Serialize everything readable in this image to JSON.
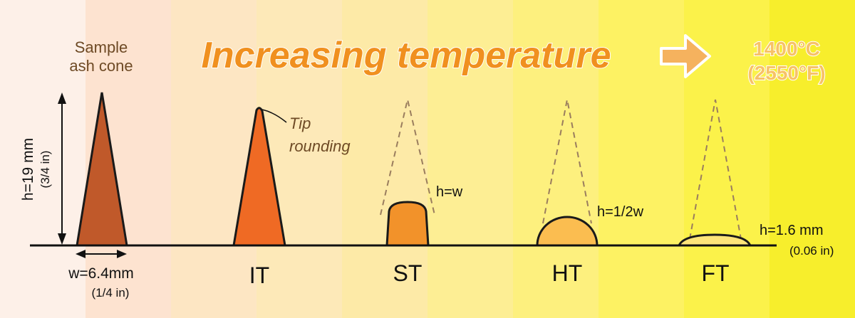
{
  "headline": "Increasing temperature",
  "max_temp": {
    "celsius": "1400°C",
    "fahrenheit": "(2550°F)"
  },
  "sample_label": {
    "line1": "Sample",
    "line2": "ash cone"
  },
  "dimensions": {
    "height": "h=19 mm",
    "height_in": "(3/4 in)",
    "width": "w=6.4mm",
    "width_in": "(1/4 in)"
  },
  "annotations": {
    "tip_line1": "Tip",
    "tip_line2": "rounding",
    "st_ratio": "h=w",
    "ht_ratio": "h=1/2w",
    "ft_height": "h=1.6 mm",
    "ft_height_in": "(0.06 in)"
  },
  "stages": [
    {
      "code": "IT",
      "color": "#ef6a24"
    },
    {
      "code": "ST",
      "color": "#f2922a"
    },
    {
      "code": "HT",
      "color": "#fbbd50"
    },
    {
      "code": "FT",
      "color": "#fde47a"
    }
  ],
  "colors": {
    "sample_cone": "#c0592a",
    "headline_fill": "#f0901f",
    "arrow_fill": "#f5b25e",
    "temp_text": "#f7c268",
    "background_bands": [
      "#fdf0e8",
      "#fde3d0",
      "#fde6c3",
      "#fde9b8",
      "#fdeaa7",
      "#fdee94",
      "#fdf07e",
      "#fdf263",
      "#fbf24a",
      "#f7ee2c"
    ]
  }
}
